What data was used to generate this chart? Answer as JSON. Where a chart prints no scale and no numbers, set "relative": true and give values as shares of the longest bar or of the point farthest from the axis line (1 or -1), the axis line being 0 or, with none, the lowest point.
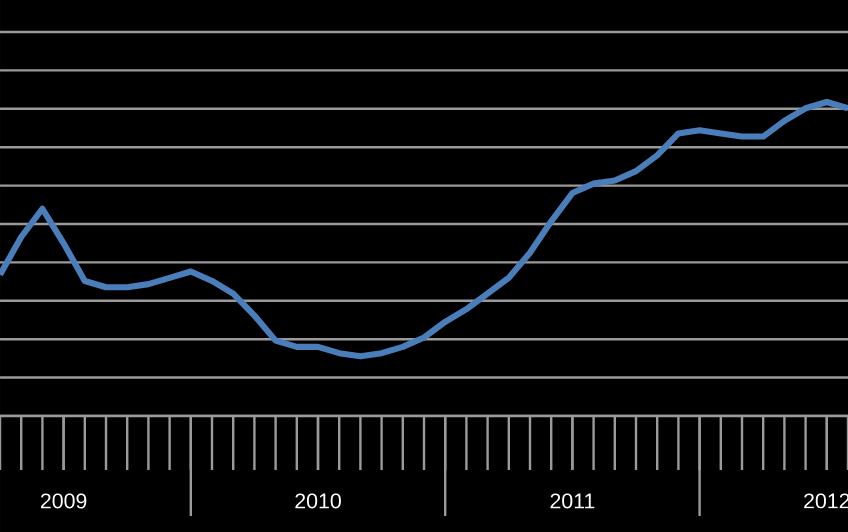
{
  "chart_data": {
    "type": "line",
    "relative": true,
    "grid": "y",
    "color": "#4a7ebb",
    "marker": "none",
    "line_style": "solid",
    "x": [
      "2009-04",
      "2009-05",
      "2009-06",
      "2009-07",
      "2009-08",
      "2009-09",
      "2009-10",
      "2009-11",
      "2009-12",
      "2010-01",
      "2010-02",
      "2010-03",
      "2010-04",
      "2010-05",
      "2010-06",
      "2010-07",
      "2010-08",
      "2010-09",
      "2010-10",
      "2010-11",
      "2010-12",
      "2011-01",
      "2011-02",
      "2011-03",
      "2011-04",
      "2011-05",
      "2011-06",
      "2011-07",
      "2011-08",
      "2011-09",
      "2011-10",
      "2011-11",
      "2011-12",
      "2012-01",
      "2012-02",
      "2012-03",
      "2012-04",
      "2012-05",
      "2012-06",
      "2012-07",
      "2012-08"
    ],
    "values": [
      0.45,
      0.57,
      0.66,
      0.55,
      0.43,
      0.41,
      0.41,
      0.42,
      0.44,
      0.46,
      0.43,
      0.39,
      0.32,
      0.24,
      0.22,
      0.22,
      0.2,
      0.19,
      0.2,
      0.22,
      0.25,
      0.3,
      0.34,
      0.39,
      0.44,
      0.52,
      0.62,
      0.71,
      0.74,
      0.75,
      0.78,
      0.83,
      0.9,
      0.91,
      0.9,
      0.89,
      0.89,
      0.94,
      0.98,
      1.0,
      0.98
    ],
    "xlim": [
      "2009-04",
      "2012-08"
    ],
    "xticks": [
      {
        "value": "2009-07",
        "label": "2009"
      },
      {
        "value": "2010-07",
        "label": "2010"
      },
      {
        "value": "2011-07",
        "label": "2011"
      },
      {
        "value": "2012-07",
        "label": "2012"
      }
    ]
  }
}
